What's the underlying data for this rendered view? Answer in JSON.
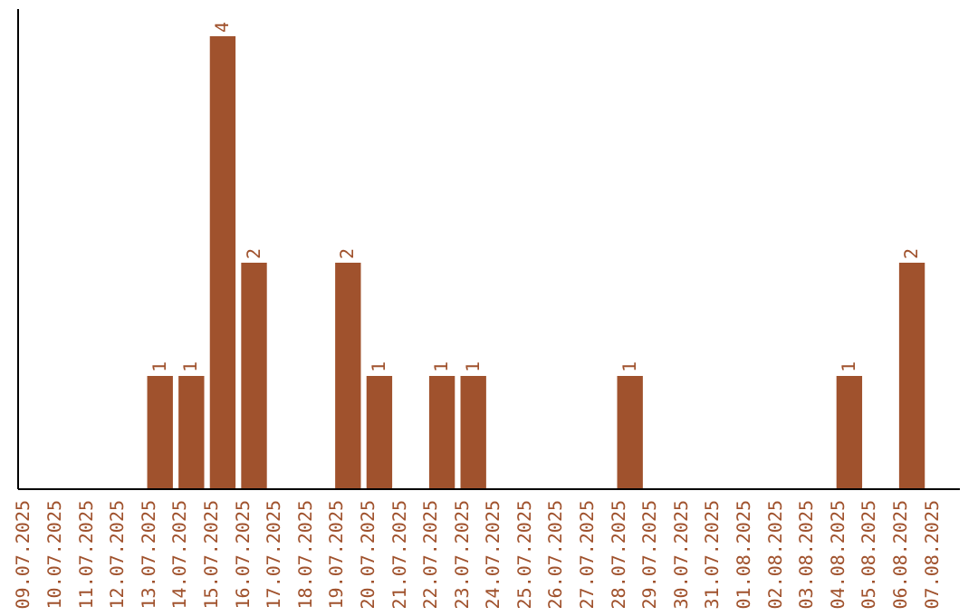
{
  "chart_data": {
    "type": "bar",
    "categories": [
      "09.07.2025",
      "10.07.2025",
      "11.07.2025",
      "12.07.2025",
      "13.07.2025",
      "14.07.2025",
      "15.07.2025",
      "16.07.2025",
      "17.07.2025",
      "18.07.2025",
      "19.07.2025",
      "20.07.2025",
      "21.07.2025",
      "22.07.2025",
      "23.07.2025",
      "24.07.2025",
      "25.07.2025",
      "26.07.2025",
      "27.07.2025",
      "28.07.2025",
      "29.07.2025",
      "30.07.2025",
      "31.07.2025",
      "01.08.2025",
      "02.08.2025",
      "03.08.2025",
      "04.08.2025",
      "05.08.2025",
      "06.08.2025",
      "07.08.2025"
    ],
    "values": [
      0,
      0,
      0,
      0,
      1,
      1,
      4,
      2,
      0,
      0,
      2,
      1,
      0,
      1,
      1,
      0,
      0,
      0,
      0,
      1,
      0,
      0,
      0,
      0,
      0,
      0,
      1,
      0,
      2,
      0
    ],
    "value_labels": [
      null,
      null,
      null,
      null,
      "1",
      "1",
      "4",
      "2",
      null,
      null,
      "2",
      "1",
      null,
      "1",
      "1",
      null,
      null,
      null,
      null,
      "1",
      null,
      null,
      null,
      null,
      null,
      null,
      "1",
      null,
      "2",
      null
    ],
    "color": "#a0522d"
  }
}
